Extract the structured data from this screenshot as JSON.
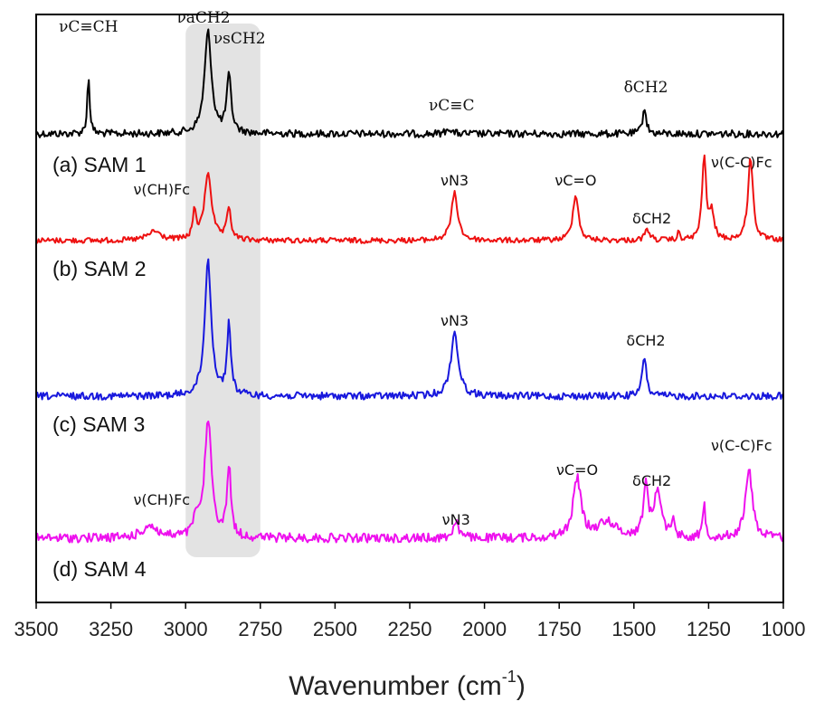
{
  "chart_data": {
    "type": "line",
    "xlabel": "Wavenumber (cm",
    "xlabel_sup": "-1",
    "xlabel_close": ")",
    "xlim": [
      3500,
      1000
    ],
    "x_reversed": true,
    "x_ticks": [
      "3500",
      "3250",
      "3000",
      "2750",
      "2500",
      "2250",
      "2000",
      "1750",
      "1500",
      "1250",
      "1000"
    ],
    "highlight_band": [
      3000,
      2750
    ],
    "series": [
      {
        "name": "(a) SAM 1",
        "color": "#000000",
        "noise": 4,
        "peaks": [
          {
            "x": 3325,
            "h": 62,
            "w": 5
          },
          {
            "x": 2925,
            "h": 112,
            "w": 14
          },
          {
            "x": 2855,
            "h": 62,
            "w": 9
          },
          {
            "x": 2120,
            "h": 7,
            "w": 9
          },
          {
            "x": 1465,
            "h": 30,
            "w": 7
          }
        ],
        "annotations": [
          {
            "text": "νC≡CH",
            "x": 3325,
            "style": "serif"
          },
          {
            "text": "νaCH2",
            "x": 2940,
            "style": "serif",
            "sub1": "a",
            "sub2": "2"
          },
          {
            "text": "νsCH2",
            "x": 2820,
            "style": "serif",
            "sub1": "s",
            "sub2": "2"
          },
          {
            "text": "νC≡C",
            "x": 2110,
            "style": "serif"
          },
          {
            "text": "δCH2",
            "x": 1460,
            "style": "serif",
            "sub2": "2"
          }
        ]
      },
      {
        "name": "(b) SAM 2",
        "color": "#ee1111",
        "noise": 3,
        "peaks": [
          {
            "x": 3105,
            "h": 10,
            "w": 25
          },
          {
            "x": 2970,
            "h": 30,
            "w": 7
          },
          {
            "x": 2925,
            "h": 75,
            "w": 14
          },
          {
            "x": 2855,
            "h": 35,
            "w": 8
          },
          {
            "x": 2100,
            "h": 52,
            "w": 13
          },
          {
            "x": 1695,
            "h": 52,
            "w": 11
          },
          {
            "x": 1455,
            "h": 12,
            "w": 10
          },
          {
            "x": 1350,
            "h": 8,
            "w": 5
          },
          {
            "x": 1265,
            "h": 92,
            "w": 8
          },
          {
            "x": 1240,
            "h": 28,
            "w": 10
          },
          {
            "x": 1110,
            "h": 92,
            "w": 10
          }
        ],
        "annotations": [
          {
            "text": "ν(CH)Fc",
            "x": 3080,
            "style": "sans",
            "sup": "Fc"
          },
          {
            "text": "νN3",
            "x": 2100,
            "style": "sans",
            "sub2": "3"
          },
          {
            "text": "νC=O",
            "x": 1695,
            "style": "sans"
          },
          {
            "text": "δCH2",
            "x": 1440,
            "style": "sans",
            "sub2": "2"
          },
          {
            "text": "ν(C-C)Fc",
            "x": 1140,
            "style": "sans",
            "sup": "Fc"
          }
        ]
      },
      {
        "name": "(c) SAM 3",
        "color": "#1818dd",
        "noise": 4,
        "peaks": [
          {
            "x": 2925,
            "h": 150,
            "w": 13
          },
          {
            "x": 2855,
            "h": 77,
            "w": 8
          },
          {
            "x": 2100,
            "h": 70,
            "w": 15
          },
          {
            "x": 1465,
            "h": 45,
            "w": 8
          }
        ],
        "annotations": [
          {
            "text": "νN3",
            "x": 2100,
            "style": "sans",
            "sub2": "3"
          },
          {
            "text": "δCH2",
            "x": 1460,
            "style": "sans",
            "sub2": "2"
          }
        ]
      },
      {
        "name": "(d) SAM 4",
        "color": "#ee11ee",
        "noise": 5,
        "peaks": [
          {
            "x": 3120,
            "h": 14,
            "w": 28
          },
          {
            "x": 2965,
            "h": 22,
            "w": 8
          },
          {
            "x": 2925,
            "h": 130,
            "w": 14
          },
          {
            "x": 2855,
            "h": 78,
            "w": 8
          },
          {
            "x": 2095,
            "h": 20,
            "w": 10
          },
          {
            "x": 1690,
            "h": 65,
            "w": 16
          },
          {
            "x": 1590,
            "h": 18,
            "w": 35
          },
          {
            "x": 1460,
            "h": 55,
            "w": 10
          },
          {
            "x": 1420,
            "h": 52,
            "w": 14
          },
          {
            "x": 1370,
            "h": 20,
            "w": 6
          },
          {
            "x": 1265,
            "h": 40,
            "w": 5
          },
          {
            "x": 1115,
            "h": 75,
            "w": 14
          }
        ],
        "annotations": [
          {
            "text": "ν(CH)Fc",
            "x": 3080,
            "style": "sans",
            "sup": "Fc"
          },
          {
            "text": "νN3",
            "x": 2095,
            "style": "sans",
            "sub2": "3"
          },
          {
            "text": "νC=O",
            "x": 1690,
            "style": "sans"
          },
          {
            "text": "δCH2",
            "x": 1440,
            "style": "sans",
            "sub2": "2"
          },
          {
            "text": "ν(C-C)Fc",
            "x": 1140,
            "style": "sans",
            "sup": "Fc"
          }
        ]
      }
    ]
  }
}
